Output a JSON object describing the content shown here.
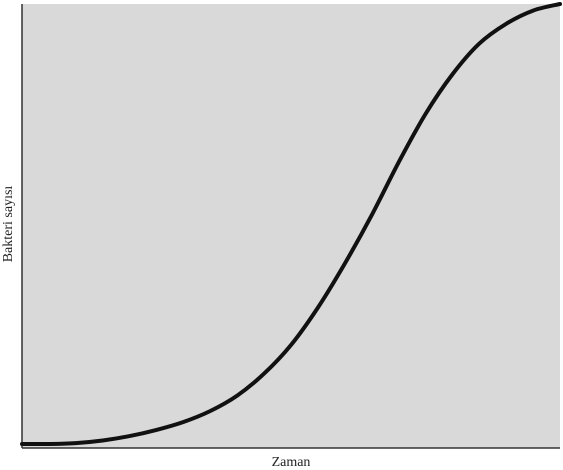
{
  "chart_data": {
    "type": "line",
    "title": "",
    "xlabel": "Zaman",
    "ylabel": "Bakteri sayısı",
    "xlim": [
      0,
      1
    ],
    "ylim": [
      0,
      1
    ],
    "grid": false,
    "legend": "none",
    "colors": {
      "plot_background": "#d9d9d9",
      "curve": "#111111",
      "axis": "#333333"
    },
    "series": [
      {
        "x": [
          0.0,
          0.05,
          0.1,
          0.15,
          0.2,
          0.25,
          0.3,
          0.35,
          0.4,
          0.45,
          0.5,
          0.55,
          0.6,
          0.65,
          0.7,
          0.75,
          0.8,
          0.85,
          0.9,
          0.95,
          1.0
        ],
        "values": [
          0.0,
          0.0,
          0.002,
          0.008,
          0.018,
          0.032,
          0.05,
          0.075,
          0.11,
          0.16,
          0.225,
          0.31,
          0.41,
          0.52,
          0.64,
          0.75,
          0.84,
          0.91,
          0.955,
          0.985,
          1.0
        ]
      }
    ]
  }
}
